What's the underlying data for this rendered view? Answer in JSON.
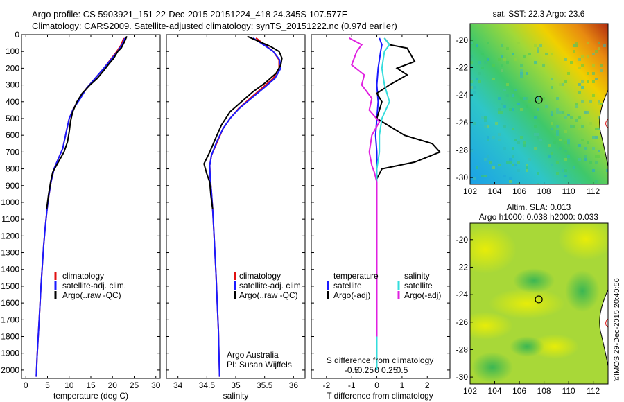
{
  "header": {
    "line1": "Argo profile: CS 5903921_151 22-Dec-2015 20151224_418 24.345S 107.577E",
    "line2": "Climatology: CARS2009. Satellite-adjusted climatology: synTS_20151222.nc (0.97d earlier)"
  },
  "colors": {
    "climatology": "#e01010",
    "satellite": "#1a1aff",
    "argo": "#000000",
    "sal_satellite": "#33dddd",
    "sal_argo": "#e020e0"
  },
  "chart_data": [
    {
      "type": "line",
      "panel": "temperature",
      "xlabel": "temperature (deg C)",
      "ylabel": "",
      "xlim": [
        -1,
        31
      ],
      "ylim": [
        2050,
        0
      ],
      "xticks": [
        "0",
        "5",
        "10",
        "15",
        "20",
        "25",
        "30"
      ],
      "yticks": [
        "0",
        "100",
        "200",
        "300",
        "400",
        "500",
        "600",
        "700",
        "800",
        "900",
        "1000",
        "1100",
        "1200",
        "1300",
        "1400",
        "1500",
        "1600",
        "1700",
        "1800",
        "1900",
        "2000"
      ],
      "legend": [
        "climatology",
        "satellite-adj. clim.",
        "Argo(..raw -QC)"
      ],
      "series": [
        {
          "name": "climatology",
          "color": "climatology",
          "points": [
            [
              22.6,
              20
            ],
            [
              22,
              60
            ],
            [
              21,
              100
            ],
            [
              19.5,
              150
            ],
            [
              18,
              200
            ],
            [
              16,
              260
            ],
            [
              14,
              320
            ],
            [
              12.5,
              380
            ],
            [
              11,
              440
            ],
            [
              10,
              500
            ],
            [
              9.5,
              560
            ],
            [
              9,
              620
            ],
            [
              8.5,
              680
            ],
            [
              7.5,
              740
            ],
            [
              6.5,
              800
            ],
            [
              5.8,
              880
            ],
            [
              5.3,
              960
            ],
            [
              4.9,
              1040
            ],
            [
              4.5,
              1140
            ],
            [
              4.1,
              1260
            ],
            [
              3.8,
              1380
            ],
            [
              3.5,
              1500
            ],
            [
              3.2,
              1640
            ],
            [
              2.9,
              1780
            ],
            [
              2.6,
              1920
            ],
            [
              2.4,
              2040
            ]
          ]
        },
        {
          "name": "satellite-adj. clim.",
          "color": "satellite",
          "points": [
            [
              22.9,
              20
            ],
            [
              22.2,
              60
            ],
            [
              21.2,
              100
            ],
            [
              19.6,
              150
            ],
            [
              18,
              200
            ],
            [
              16,
              260
            ],
            [
              14,
              320
            ],
            [
              12.6,
              380
            ],
            [
              11,
              440
            ],
            [
              10,
              500
            ],
            [
              9.5,
              560
            ],
            [
              9,
              620
            ],
            [
              8.5,
              680
            ],
            [
              7.5,
              740
            ],
            [
              6.5,
              800
            ],
            [
              5.8,
              880
            ],
            [
              5.3,
              960
            ],
            [
              4.9,
              1040
            ],
            [
              4.5,
              1140
            ],
            [
              4.1,
              1260
            ],
            [
              3.8,
              1380
            ],
            [
              3.5,
              1500
            ],
            [
              3.2,
              1640
            ],
            [
              2.9,
              1780
            ],
            [
              2.6,
              1920
            ],
            [
              2.4,
              2040
            ]
          ]
        },
        {
          "name": "Argo(..raw -QC)",
          "color": "argo",
          "points": [
            [
              23.3,
              10
            ],
            [
              22.8,
              40
            ],
            [
              22,
              80
            ],
            [
              21.2,
              100
            ],
            [
              20.3,
              140
            ],
            [
              19,
              180
            ],
            [
              17.8,
              220
            ],
            [
              16.5,
              260
            ],
            [
              14.8,
              300
            ],
            [
              13,
              350
            ],
            [
              11.8,
              400
            ],
            [
              10.8,
              460
            ],
            [
              10.3,
              520
            ],
            [
              10,
              580
            ],
            [
              9.6,
              640
            ],
            [
              8.8,
              700
            ],
            [
              7.5,
              760
            ],
            [
              6.2,
              820
            ],
            [
              5.7,
              880
            ],
            [
              5.2,
              960
            ],
            [
              4.8,
              1040
            ]
          ]
        }
      ]
    },
    {
      "type": "line",
      "panel": "salinity",
      "xlabel": "salinity",
      "ylabel": "",
      "xlim": [
        33.8,
        36.2
      ],
      "ylim": [
        2050,
        0
      ],
      "xticks": [
        "34",
        "34.5",
        "35",
        "35.5",
        "36"
      ],
      "legend": [
        "climatology",
        "satellite-adj. clim.",
        "Argo(..raw -QC)"
      ],
      "annotation": [
        "Argo Australia",
        "PI: Susan Wijffels"
      ],
      "series": [
        {
          "name": "climatology",
          "color": "climatology",
          "points": [
            [
              35.35,
              20
            ],
            [
              35.5,
              60
            ],
            [
              35.65,
              100
            ],
            [
              35.75,
              150
            ],
            [
              35.75,
              200
            ],
            [
              35.65,
              260
            ],
            [
              35.45,
              320
            ],
            [
              35.25,
              380
            ],
            [
              35.05,
              440
            ],
            [
              34.9,
              500
            ],
            [
              34.78,
              560
            ],
            [
              34.68,
              640
            ],
            [
              34.58,
              720
            ],
            [
              34.55,
              780
            ],
            [
              34.56,
              860
            ],
            [
              34.58,
              940
            ],
            [
              34.6,
              1040
            ],
            [
              34.62,
              1160
            ],
            [
              34.64,
              1300
            ],
            [
              34.66,
              1440
            ],
            [
              34.68,
              1600
            ],
            [
              34.7,
              1760
            ],
            [
              34.71,
              1900
            ],
            [
              34.72,
              2040
            ]
          ]
        },
        {
          "name": "satellite-adj. clim.",
          "color": "satellite",
          "points": [
            [
              35.3,
              20
            ],
            [
              35.48,
              60
            ],
            [
              35.65,
              100
            ],
            [
              35.76,
              150
            ],
            [
              35.78,
              200
            ],
            [
              35.68,
              260
            ],
            [
              35.48,
              320
            ],
            [
              35.27,
              380
            ],
            [
              35.06,
              440
            ],
            [
              34.9,
              500
            ],
            [
              34.78,
              560
            ],
            [
              34.67,
              640
            ],
            [
              34.58,
              720
            ],
            [
              34.55,
              780
            ],
            [
              34.56,
              860
            ],
            [
              34.58,
              940
            ],
            [
              34.6,
              1040
            ],
            [
              34.62,
              1160
            ],
            [
              34.64,
              1300
            ],
            [
              34.66,
              1440
            ],
            [
              34.68,
              1600
            ],
            [
              34.7,
              1760
            ],
            [
              34.71,
              1900
            ],
            [
              34.72,
              2040
            ]
          ]
        },
        {
          "name": "Argo(..raw -QC)",
          "color": "argo",
          "points": [
            [
              35.2,
              10
            ],
            [
              35.4,
              40
            ],
            [
              35.6,
              70
            ],
            [
              35.75,
              100
            ],
            [
              35.8,
              140
            ],
            [
              35.78,
              180
            ],
            [
              35.7,
              230
            ],
            [
              35.5,
              290
            ],
            [
              35.3,
              340
            ],
            [
              35.1,
              400
            ],
            [
              34.9,
              460
            ],
            [
              34.75,
              540
            ],
            [
              34.65,
              620
            ],
            [
              34.55,
              700
            ],
            [
              34.45,
              770
            ],
            [
              34.5,
              830
            ],
            [
              34.55,
              880
            ],
            [
              34.57,
              960
            ],
            [
              34.6,
              1040
            ]
          ]
        }
      ]
    },
    {
      "type": "line",
      "panel": "difference",
      "xlabel": "T difference from climatology",
      "xlabel_top": "S difference from climatology",
      "xlim": [
        -2.6,
        2.9
      ],
      "ylim": [
        2050,
        0
      ],
      "xticks": [
        "-2",
        "-1",
        "0",
        "1",
        "2"
      ],
      "xticks_s": [
        "-0.5",
        "-0.25",
        "0",
        "0.25",
        "0.5"
      ],
      "legend_headers": [
        "temperature",
        "salinity"
      ],
      "legend": [
        "satellite",
        "Argo(-adj)",
        "satellite",
        "Argo(-adj)"
      ],
      "series": [
        {
          "name": "satellite",
          "color": "satellite",
          "points": [
            [
              0.1,
              20
            ],
            [
              0.2,
              60
            ],
            [
              0.15,
              100
            ],
            [
              0.05,
              200
            ],
            [
              0,
              300
            ],
            [
              0.05,
              400
            ],
            [
              0,
              500
            ],
            [
              -0.05,
              600
            ],
            [
              0,
              700
            ],
            [
              0,
              800
            ],
            [
              0,
              900
            ],
            [
              0,
              1100
            ],
            [
              0,
              1400
            ],
            [
              0,
              1700
            ],
            [
              0,
              2000
            ]
          ]
        },
        {
          "name": "Argo(-adj)",
          "color": "argo",
          "points": [
            [
              0.3,
              20
            ],
            [
              0.5,
              60
            ],
            [
              1.2,
              80
            ],
            [
              1.5,
              160
            ],
            [
              0.8,
              200
            ],
            [
              1.2,
              240
            ],
            [
              0.5,
              300
            ],
            [
              0,
              350
            ],
            [
              0.2,
              400
            ],
            [
              0,
              500
            ],
            [
              1.1,
              600
            ],
            [
              2.2,
              650
            ],
            [
              2.5,
              700
            ],
            [
              1.5,
              760
            ],
            [
              0.2,
              800
            ],
            [
              0,
              860
            ],
            [
              0,
              900
            ],
            [
              0,
              1000
            ],
            [
              0,
              1200
            ],
            [
              0,
              1500
            ],
            [
              0,
              1700
            ]
          ]
        },
        {
          "name": "satellite",
          "color": "sal_satellite",
          "points": [
            [
              0.3,
              20
            ],
            [
              0.5,
              60
            ],
            [
              0.3,
              100
            ],
            [
              0.2,
              200
            ],
            [
              0.3,
              300
            ],
            [
              0.5,
              400
            ],
            [
              0.2,
              500
            ],
            [
              0.1,
              600
            ],
            [
              0.1,
              700
            ],
            [
              0,
              800
            ],
            [
              0,
              900
            ],
            [
              0,
              1100
            ],
            [
              0,
              1400
            ],
            [
              0,
              1700
            ],
            [
              0,
              2000
            ]
          ]
        },
        {
          "name": "Argo(-adj)",
          "color": "sal_argo",
          "points": [
            [
              -1.1,
              20
            ],
            [
              -0.6,
              60
            ],
            [
              -0.8,
              100
            ],
            [
              -1.0,
              180
            ],
            [
              -0.5,
              240
            ],
            [
              -0.6,
              300
            ],
            [
              -0.2,
              380
            ],
            [
              -0.3,
              450
            ],
            [
              0.1,
              520
            ],
            [
              -0.2,
              600
            ],
            [
              -0.3,
              700
            ],
            [
              -0.2,
              780
            ],
            [
              -0.1,
              820
            ],
            [
              0,
              880
            ],
            [
              0,
              1000
            ],
            [
              0,
              1200
            ],
            [
              0,
              1400
            ],
            [
              0,
              1600
            ],
            [
              0,
              1800
            ]
          ]
        }
      ]
    },
    {
      "type": "heatmap",
      "panel": "sst_map",
      "title": "sat. SST: 22.3 Argo: 23.6",
      "xticks": [
        "102",
        "104",
        "106",
        "108",
        "110",
        "112"
      ],
      "yticks": [
        "-20",
        "-22",
        "-24",
        "-26",
        "-28",
        "-30"
      ],
      "xlim": [
        102,
        113.2
      ],
      "ylim": [
        -30.5,
        -18.8
      ],
      "argo_position": {
        "lon": 107.577,
        "lat": -24.345
      }
    },
    {
      "type": "heatmap",
      "panel": "sla_map",
      "title_line1": "Altim. SLA: 0.013",
      "title_line2": "Argo h1000: 0.038 h2000: 0.033",
      "xticks": [
        "102",
        "104",
        "106",
        "108",
        "110",
        "112"
      ],
      "yticks": [
        "-20",
        "-22",
        "-24",
        "-26",
        "-28",
        "-30"
      ],
      "xlim": [
        102,
        113.2
      ],
      "ylim": [
        -30.5,
        -18.8
      ],
      "argo_position": {
        "lon": 107.577,
        "lat": -24.345
      }
    }
  ],
  "footer": {
    "stamp": "©IMOS 29-Dec-2015 20:40:56"
  }
}
